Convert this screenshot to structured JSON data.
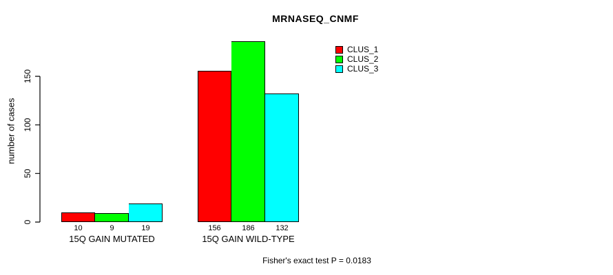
{
  "chart_data": {
    "type": "bar",
    "title": "MRNASEQ_CNMF",
    "ylabel": "number of cases",
    "xlabel": "",
    "yticks": [
      0,
      50,
      100,
      150
    ],
    "ylim": [
      0,
      186
    ],
    "grid": false,
    "legend_position": "top-right",
    "categories": [
      "15Q GAIN MUTATED",
      "15Q GAIN WILD-TYPE"
    ],
    "series": [
      {
        "name": "CLUS_1",
        "color": "#ff0000",
        "values": [
          10,
          156
        ]
      },
      {
        "name": "CLUS_2",
        "color": "#00ff00",
        "values": [
          9,
          186
        ]
      },
      {
        "name": "CLUS_3",
        "color": "#00ffff",
        "values": [
          19,
          132
        ]
      }
    ],
    "bar_value_labels": [
      [
        "10",
        "9",
        "19"
      ],
      [
        "156",
        "186",
        "132"
      ]
    ],
    "annotation": "Fisher's exact test P = 0.0183",
    "p_value": "0.0183",
    "axis_color": "#000000",
    "background_color": "#ffffff"
  }
}
